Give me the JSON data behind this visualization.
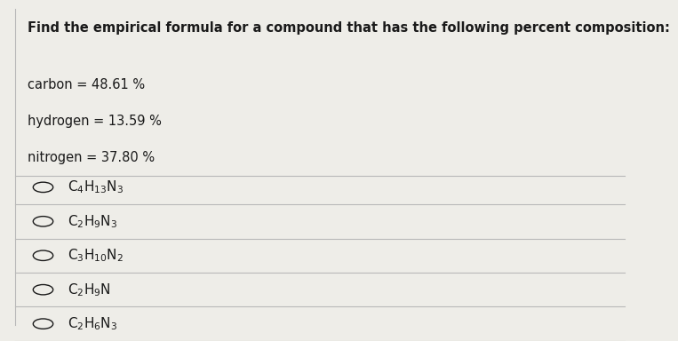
{
  "title": "Find the empirical formula for a compound that has the following percent composition:",
  "composition": [
    "carbon = 48.61 %",
    "hydrogen = 13.59 %",
    "nitrogen = 37.80 %"
  ],
  "option_texts": [
    "$\\mathrm{C_4H_{13}N_3}$",
    "$\\mathrm{C_2H_9N_3}$",
    "$\\mathrm{C_3H_{10}N_2}$",
    "$\\mathrm{C_2H_9N}$",
    "$\\mathrm{C_2H_6N_3}$"
  ],
  "bg_color": "#eeede8",
  "text_color": "#1a1a1a",
  "line_color": "#b8b8b8",
  "title_fontsize": 10.5,
  "body_fontsize": 10.5,
  "option_fontsize": 11
}
